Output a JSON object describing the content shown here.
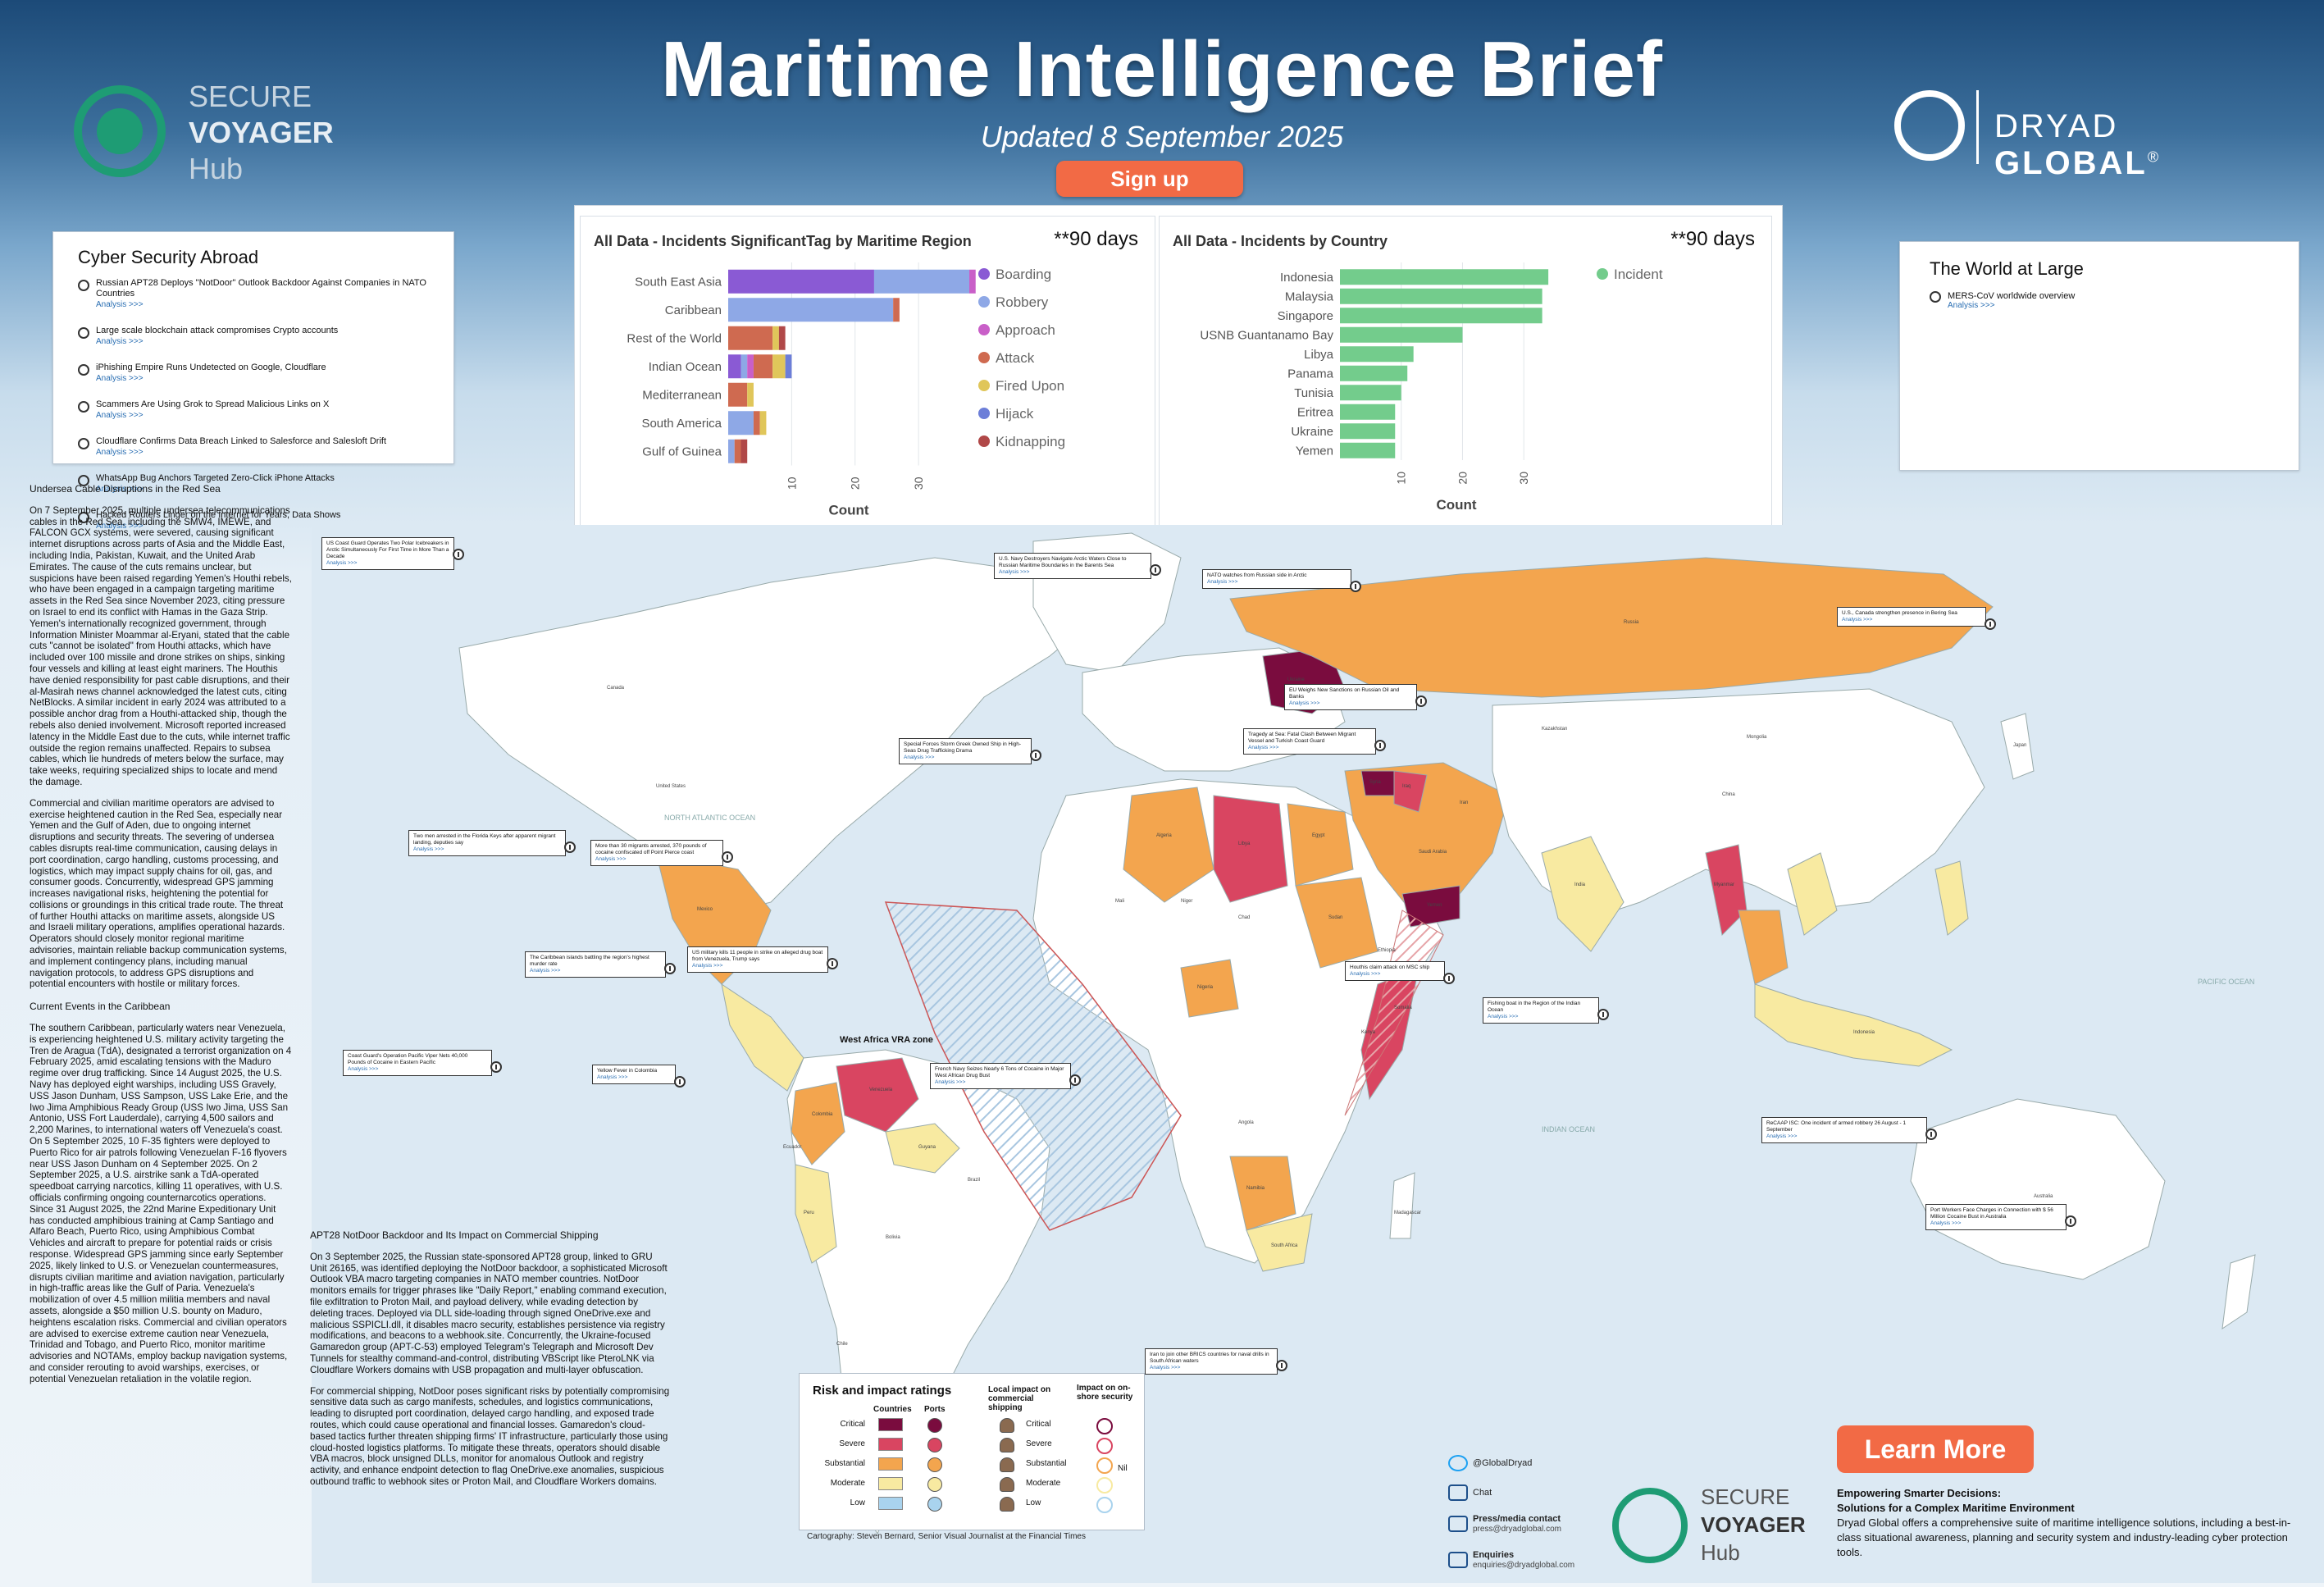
{
  "header": {
    "title": "Maritime Intelligence Brief",
    "subtitle": "Updated 8 September 2025",
    "signup_label": "Sign up"
  },
  "logo_left": {
    "line1": "SECURE",
    "line2": "VOYAGER",
    "line3": "Hub"
  },
  "logo_right": {
    "light": "DRYAD ",
    "bold": "GLOBAL",
    "reg": "®"
  },
  "cyber_abroad": {
    "title": "Cyber Security Abroad",
    "link_label": "Analysis >>>",
    "items": [
      "Russian APT28 Deploys \"NotDoor\" Outlook Backdoor Against Companies in NATO Countries",
      "Large scale blockchain attack compromises Crypto accounts",
      "iPhishing Empire Runs Undetected on Google, Cloudflare",
      "Scammers Are Using Grok to Spread Malicious Links on X",
      "Cloudflare Confirms Data Breach Linked to Salesforce and Salesloft Drift",
      "WhatsApp Bug Anchors Targeted Zero-Click iPhone Attacks",
      "Hacked Routers Linger on the Internet for Years, Data Shows"
    ]
  },
  "world_at_large": {
    "title": "The World at Large",
    "items": [
      "MERS-CoV worldwide overview"
    ],
    "link_label": "Analysis >>>"
  },
  "chart_data": [
    {
      "type": "bar",
      "orientation": "horizontal-stacked",
      "title": "All Data - Incidents SignificantTag by Maritime Region",
      "note": "**90 days",
      "xlabel": "Count",
      "ylabel": "",
      "xlim": [
        0,
        38
      ],
      "xticks": [
        10,
        20,
        30
      ],
      "categories": [
        "South East Asia",
        "Caribbean",
        "Rest of the World",
        "Indian Ocean",
        "Mediterranean",
        "South America",
        "Gulf of Guinea"
      ],
      "series": [
        {
          "name": "Boarding",
          "color": "#8a5ad4",
          "values": [
            23,
            0,
            0,
            2,
            0,
            0,
            0
          ]
        },
        {
          "name": "Robbery",
          "color": "#8ea8e6",
          "values": [
            15,
            26,
            0,
            1,
            0,
            4,
            1
          ]
        },
        {
          "name": "Approach",
          "color": "#c95fc8",
          "values": [
            1,
            0,
            0,
            1,
            0,
            0,
            0
          ]
        },
        {
          "name": "Attack",
          "color": "#cf6a50",
          "values": [
            0,
            1,
            7,
            3,
            3,
            1,
            1
          ]
        },
        {
          "name": "Fired Upon",
          "color": "#e0c65a",
          "values": [
            0,
            0,
            1,
            2,
            1,
            1,
            0
          ]
        },
        {
          "name": "Hijack",
          "color": "#6c7ed8",
          "values": [
            0,
            0,
            0,
            1,
            0,
            0,
            0
          ]
        },
        {
          "name": "Kidnapping",
          "color": "#b04848",
          "values": [
            0,
            0,
            1,
            0,
            0,
            0,
            1
          ]
        }
      ],
      "legend": "right"
    },
    {
      "type": "bar",
      "orientation": "horizontal",
      "title": "All Data - Incidents by Country",
      "note": "**90 days",
      "xlabel": "Count",
      "ylabel": "",
      "xlim": [
        0,
        38
      ],
      "xticks": [
        10,
        20,
        30
      ],
      "categories": [
        "Indonesia",
        "Malaysia",
        "Singapore",
        "USNB Guantanamo Bay",
        "Libya",
        "Panama",
        "Tunisia",
        "Eritrea",
        "Ukraine",
        "Yemen"
      ],
      "series": [
        {
          "name": "Incident",
          "color": "#73cc8c",
          "values": [
            34,
            33,
            33,
            20,
            12,
            11,
            10,
            9,
            9,
            9
          ]
        }
      ],
      "legend": "right"
    }
  ],
  "articles": {
    "red_sea": {
      "heading": "Undersea Cable Disruptions in the Red Sea",
      "paragraphs": [
        "On 7 September 2025, multiple undersea telecommunications cables in the Red Sea, including the SMW4, IMEWE, and FALCON GCX systems, were severed, causing significant internet disruptions across parts of Asia and the Middle East, including India, Pakistan, Kuwait, and the United Arab Emirates. The cause of the cuts remains unclear, but suspicions have been raised regarding Yemen's Houthi rebels, who have been engaged in a campaign targeting maritime assets in the Red Sea since November 2023, citing pressure on Israel to end its conflict with Hamas in the Gaza Strip. Yemen's internationally recognized government, through Information Minister Moammar al-Eryani, stated that the cable cuts \"cannot be isolated\" from Houthi attacks, which have included over 100 missile and drone strikes on ships, sinking four vessels and killing at least eight mariners. The Houthis have denied responsibility for past cable disruptions, and their al-Masirah news channel acknowledged the latest cuts, citing NetBlocks. A similar incident in early 2024 was attributed to a possible anchor drag from a Houthi-attacked ship, though the rebels also denied involvement. Microsoft reported increased latency in the Middle East due to the cuts, while internet traffic outside the region remains unaffected. Repairs to subsea cables, which lie hundreds of meters below the surface, may take weeks, requiring specialized ships to locate and mend the damage.",
        "Commercial and civilian maritime operators are advised to exercise heightened caution in the Red Sea, especially near Yemen and the Gulf of Aden, due to ongoing internet disruptions and security threats. The severing of undersea cables disrupts real-time communication, causing delays in port coordination, cargo handling, customs processing, and logistics, which may impact supply chains for oil, gas, and consumer goods. Concurrently, widespread GPS jamming increases navigational risks, heightening the potential for collisions or groundings in this critical trade route. The threat of further Houthi attacks on maritime assets, alongside US and Israeli military operations, amplifies operational hazards. Operators should closely monitor regional maritime advisories, maintain reliable backup communication systems, and implement contingency plans, including manual navigation protocols, to address GPS disruptions and potential encounters with hostile or military forces."
      ]
    },
    "caribbean": {
      "heading": "Current Events in the Caribbean",
      "paragraphs": [
        "The southern Caribbean, particularly waters near Venezuela, is experiencing heightened U.S. military activity targeting the Tren de Aragua (TdA), designated a terrorist organization on 4 February 2025, amid escalating tensions with the Maduro regime over drug trafficking. Since 14 August 2025, the U.S. Navy has deployed eight warships, including USS Gravely, USS Jason Dunham, USS Sampson, USS Lake Erie, and the Iwo Jima Amphibious Ready Group (USS Iwo Jima, USS San Antonio, USS Fort Lauderdale), carrying 4,500 sailors and 2,200 Marines, to international waters off Venezuela's coast. On 5 September 2025, 10 F-35 fighters were deployed to Puerto Rico for air patrols following Venezuelan F-16 flyovers near USS Jason Dunham on 4 September 2025. On 2 September 2025, a U.S. airstrike sank a TdA-operated speedboat carrying narcotics, killing 11 operatives, with U.S. officials confirming ongoing counternarcotics operations. Since 31 August 2025, the 22nd Marine Expeditionary Unit has conducted amphibious training at Camp Santiago and Alfaro Beach, Puerto Rico, using Amphibious Combat Vehicles and aircraft to prepare for potential raids or crisis response. Widespread GPS jamming since early September 2025, likely linked to U.S. or Venezuelan countermeasures, disrupts civilian maritime and aviation navigation, particularly in high-traffic areas like the Gulf of Paria. Venezuela's mobilization of over 4.5 million militia members and naval assets, alongside a $50 million U.S. bounty on Maduro, heightens escalation risks. Commercial and civilian operators are advised to exercise extreme caution near Venezuela, Trinidad and Tobago, and Puerto Rico, monitor maritime advisories and NOTAMs, employ backup navigation systems, and consider rerouting to avoid warships, exercises, or potential Venezuelan retaliation in the volatile region."
      ]
    },
    "apt28": {
      "heading": "APT28 NotDoor Backdoor and Its Impact on Commercial Shipping",
      "paragraphs": [
        "On 3 September 2025, the Russian state-sponsored APT28 group, linked to GRU Unit 26165, was identified deploying the NotDoor backdoor, a sophisticated Microsoft Outlook VBA macro targeting companies in NATO member countries. NotDoor monitors emails for trigger phrases like \"Daily Report,\" enabling command execution, file exfiltration to Proton Mail, and payload delivery, while evading detection by deleting traces. Deployed via DLL side-loading through signed OneDrive.exe and malicious SSPICLI.dll, it disables macro security, establishes persistence via registry modifications, and beacons to a webhook.site. Concurrently, the Ukraine-focused Gamaredon group (APT-C-53) employed Telegram's Telegraph and Microsoft Dev Tunnels for stealthy command-and-control, distributing VBScript like PteroLNK via Cloudflare Workers domains with USB propagation and multi-layer obfuscation.",
        "For commercial shipping, NotDoor poses significant risks by potentially compromising sensitive data such as cargo manifests, schedules, and logistics communications, leading to disrupted port coordination, delayed cargo handling, and exposed trade routes, which could cause operational and financial losses. Gamaredon's cloud-based tactics further threaten shipping firms' IT infrastructure, particularly those using cloud-hosted logistics platforms. To mitigate these threats, operators should disable VBA macros, block unsigned DLLs, monitor for anomalous Outlook and registry activity, and enhance endpoint detection to flag OneDrive.exe anomalies, suspicious outbound traffic to webhook sites or Proton Mail, and Cloudflare Workers domains."
      ]
    }
  },
  "map": {
    "vra_label": "West Africa VRA zone",
    "country_labels": [
      "Canada",
      "United States",
      "Mexico",
      "Venezuela",
      "Colombia",
      "Brazil",
      "Peru",
      "Bolivia",
      "Argentina",
      "Chile",
      "Ecuador",
      "Guyana",
      "Algeria",
      "Libya",
      "Egypt",
      "Sudan",
      "Chad",
      "Niger",
      "Mali",
      "Nigeria",
      "Ethiopia",
      "Somalia",
      "Kenya",
      "Angola",
      "Namibia",
      "South Africa",
      "Madagascar",
      "Ukraine",
      "Russia",
      "Kazakhstan",
      "Iran",
      "Iraq",
      "Syria",
      "Saudi Arabia",
      "Yemen",
      "India",
      "China",
      "Myanmar",
      "Mongolia",
      "Australia",
      "Indonesia",
      "Japan"
    ],
    "ocean_labels": [
      "NORTH ATLANTIC OCEAN",
      "PACIFIC OCEAN",
      "INDIAN OCEAN"
    ],
    "notes": [
      "US Coast Guard Operates Two Polar Icebreakers in Arctic Simultaneously For First Time in More Than a Decade",
      "U.S. Navy Destroyers Navigate Arctic Waters Close to Russian Maritime Boundaries in the Barents Sea",
      "NATO watches from Russian side in Arctic",
      "U.S., Canada strengthen presence in Bering Sea",
      "EU Weighs New Sanctions on Russian Oil and Banks",
      "Tragedy at Sea: Fatal Clash Between Migrant Vessel and Turkish Coast Guard",
      "Special Forces Storm Greek Owned Ship in High-Seas Drug Trafficking Drama",
      "Two men arrested in the Florida Keys after apparent migrant landing, deputies say",
      "More than 30 migrants arrested, 370 pounds of cocaine confiscated off Point Pierce coast",
      "The Caribbean islands battling the region's highest murder rate",
      "US military kills 11 people in strike on alleged drug boat from Venezuela, Trump says",
      "Coast Guard's Operation Pacific Viper Nets 40,000 Pounds of Cocaine in Eastern Pacific",
      "Yellow Fever in Colombia",
      "French Navy Seizes Nearly 6 Tons of Cocaine in Major West African Drug Bust",
      "Houthis claim attack on MSC ship",
      "Fishing boat in the Region of the Indian Ocean",
      "ReCAAP ISC: One incident of armed robbery 26 August - 1 September",
      "Port Workers Face Charges in Connection with $ 56 Million Cocaine Bust in Australia",
      "Iran to join other BRICS countries for naval drills in South African waters"
    ],
    "link_label": "Analysis >>>"
  },
  "legend": {
    "title": "Risk and impact ratings",
    "col_countries": "Countries",
    "col_ports": "Ports",
    "col_local": "Local impact on commercial shipping",
    "col_onshore": "Impact on on-shore security",
    "rows": [
      {
        "label": "Critical",
        "color": "#7a0c3e"
      },
      {
        "label": "Severe",
        "color": "#d94561"
      },
      {
        "label": "Substantial",
        "color": "#f3a54e"
      },
      {
        "label": "Moderate",
        "color": "#f8eaa1"
      },
      {
        "label": "Low",
        "color": "#a9d3ee"
      }
    ],
    "right_rows": [
      "Critical",
      "Severe",
      "Substantial",
      "Moderate",
      "Low"
    ],
    "nil_label": "Nil"
  },
  "footer": {
    "cartography": "Cartography: Steven Bernard, Senior Visual Journalist at the Financial Times",
    "twitter": "@GlobalDryad",
    "chat": "Chat",
    "press_label": "Press/media contact",
    "press_email": "press@dryadglobal.com",
    "enquiries_label": "Enquiries",
    "enquiries_email": "enquiries@dryadglobal.com",
    "learn_more": "Learn More",
    "promo_title1": "Empowering Smarter Decisions:",
    "promo_title2": "Solutions for a Complex Maritime Environment",
    "promo_text": "Dryad Global offers a comprehensive suite of maritime intelligence solutions, including a best-in-class situational awareness, planning and security system and industry-leading cyber protection tools."
  }
}
